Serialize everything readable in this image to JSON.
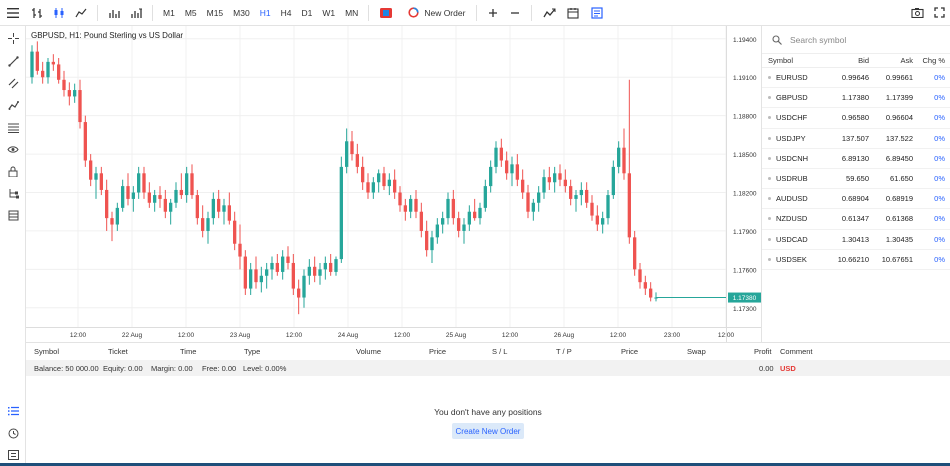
{
  "toolbar": {
    "timeframes": [
      "M1",
      "M5",
      "M15",
      "M30",
      "H1",
      "H4",
      "D1",
      "W1",
      "MN"
    ],
    "active_timeframe": "H1",
    "new_order_label": "New Order"
  },
  "chart": {
    "title": "GBPUSD, H1: Pound Sterling vs US Dollar",
    "current_price": "1.17380",
    "bull_color": "#26a69a",
    "bear_color": "#ef5350"
  },
  "chart_data": {
    "type": "candlestick",
    "title": "GBPUSD, H1: Pound Sterling vs US Dollar",
    "y_ticks": [
      "1.19400",
      "1.19100",
      "1.18800",
      "1.18500",
      "1.18200",
      "1.17900",
      "1.17600",
      "1.17300"
    ],
    "x_ticks": [
      "12:00",
      "22 Aug",
      "12:00",
      "23 Aug",
      "12:00",
      "24 Aug",
      "12:00",
      "25 Aug",
      "12:00",
      "26 Aug",
      "12:00",
      "23:00",
      "12:00"
    ],
    "ylim": [
      1.1715,
      1.195
    ],
    "last_price": 1.1738,
    "candles": [
      [
        1.191,
        1.1935,
        1.1905,
        1.193
      ],
      [
        1.193,
        1.1938,
        1.1912,
        1.1915
      ],
      [
        1.1915,
        1.1922,
        1.1905,
        1.191
      ],
      [
        1.191,
        1.1925,
        1.1905,
        1.1922
      ],
      [
        1.1922,
        1.1928,
        1.1915,
        1.192
      ],
      [
        1.192,
        1.1925,
        1.1905,
        1.1908
      ],
      [
        1.1908,
        1.1915,
        1.1895,
        1.19
      ],
      [
        1.19,
        1.1906,
        1.1888,
        1.1895
      ],
      [
        1.1895,
        1.1905,
        1.189,
        1.19
      ],
      [
        1.19,
        1.1908,
        1.187,
        1.1875
      ],
      [
        1.1875,
        1.188,
        1.184,
        1.1845
      ],
      [
        1.1845,
        1.185,
        1.1825,
        1.183
      ],
      [
        1.183,
        1.184,
        1.1815,
        1.1835
      ],
      [
        1.1835,
        1.184,
        1.1818,
        1.1822
      ],
      [
        1.1822,
        1.183,
        1.179,
        1.18
      ],
      [
        1.18,
        1.1805,
        1.1782,
        1.1795
      ],
      [
        1.1795,
        1.1812,
        1.179,
        1.1808
      ],
      [
        1.1808,
        1.183,
        1.1805,
        1.1825
      ],
      [
        1.1825,
        1.1835,
        1.181,
        1.1815
      ],
      [
        1.1815,
        1.1825,
        1.1805,
        1.182
      ],
      [
        1.182,
        1.184,
        1.1815,
        1.1835
      ],
      [
        1.1835,
        1.184,
        1.1815,
        1.182
      ],
      [
        1.182,
        1.1828,
        1.1808,
        1.1812
      ],
      [
        1.1812,
        1.1822,
        1.1805,
        1.1818
      ],
      [
        1.1818,
        1.1825,
        1.1808,
        1.1815
      ],
      [
        1.1815,
        1.1822,
        1.18,
        1.1805
      ],
      [
        1.1805,
        1.1815,
        1.1795,
        1.1812
      ],
      [
        1.1812,
        1.1828,
        1.1808,
        1.1822
      ],
      [
        1.1822,
        1.1835,
        1.1815,
        1.1818
      ],
      [
        1.1818,
        1.184,
        1.1812,
        1.1835
      ],
      [
        1.1835,
        1.1842,
        1.1815,
        1.1818
      ],
      [
        1.1818,
        1.1822,
        1.1795,
        1.18
      ],
      [
        1.18,
        1.181,
        1.1785,
        1.179
      ],
      [
        1.179,
        1.1805,
        1.178,
        1.18
      ],
      [
        1.18,
        1.182,
        1.1795,
        1.1815
      ],
      [
        1.1815,
        1.1822,
        1.18,
        1.1805
      ],
      [
        1.1805,
        1.1815,
        1.1795,
        1.181
      ],
      [
        1.181,
        1.182,
        1.1795,
        1.1798
      ],
      [
        1.1798,
        1.1805,
        1.1775,
        1.178
      ],
      [
        1.178,
        1.1795,
        1.176,
        1.177
      ],
      [
        1.177,
        1.1775,
        1.174,
        1.1745
      ],
      [
        1.1745,
        1.1765,
        1.174,
        1.176
      ],
      [
        1.176,
        1.177,
        1.1745,
        1.175
      ],
      [
        1.175,
        1.1762,
        1.1742,
        1.1755
      ],
      [
        1.1755,
        1.1765,
        1.1745,
        1.176
      ],
      [
        1.176,
        1.177,
        1.1752,
        1.1765
      ],
      [
        1.1765,
        1.1772,
        1.1755,
        1.1758
      ],
      [
        1.1758,
        1.1775,
        1.1752,
        1.177
      ],
      [
        1.177,
        1.1778,
        1.176,
        1.1765
      ],
      [
        1.1765,
        1.1772,
        1.174,
        1.1745
      ],
      [
        1.1745,
        1.1752,
        1.1725,
        1.1738
      ],
      [
        1.1738,
        1.176,
        1.173,
        1.1755
      ],
      [
        1.1755,
        1.1768,
        1.1748,
        1.1762
      ],
      [
        1.1762,
        1.177,
        1.175,
        1.1755
      ],
      [
        1.1755,
        1.1765,
        1.1748,
        1.176
      ],
      [
        1.176,
        1.177,
        1.1752,
        1.1765
      ],
      [
        1.1765,
        1.1772,
        1.1755,
        1.1758
      ],
      [
        1.1758,
        1.177,
        1.1755,
        1.1768
      ],
      [
        1.1768,
        1.1848,
        1.1765,
        1.184
      ],
      [
        1.184,
        1.187,
        1.1835,
        1.186
      ],
      [
        1.186,
        1.1868,
        1.1845,
        1.185
      ],
      [
        1.185,
        1.1858,
        1.1835,
        1.184
      ],
      [
        1.184,
        1.1848,
        1.1822,
        1.1828
      ],
      [
        1.1828,
        1.1835,
        1.1815,
        1.182
      ],
      [
        1.182,
        1.1832,
        1.1815,
        1.1828
      ],
      [
        1.1828,
        1.1838,
        1.182,
        1.1835
      ],
      [
        1.1835,
        1.184,
        1.1822,
        1.1825
      ],
      [
        1.1825,
        1.1835,
        1.1818,
        1.183
      ],
      [
        1.183,
        1.1838,
        1.1815,
        1.182
      ],
      [
        1.182,
        1.1825,
        1.1805,
        1.181
      ],
      [
        1.181,
        1.1815,
        1.1798,
        1.1805
      ],
      [
        1.1805,
        1.1818,
        1.18,
        1.1815
      ],
      [
        1.1815,
        1.1822,
        1.18,
        1.1805
      ],
      [
        1.1805,
        1.1812,
        1.1785,
        1.179
      ],
      [
        1.179,
        1.1798,
        1.177,
        1.1775
      ],
      [
        1.1775,
        1.179,
        1.1765,
        1.1785
      ],
      [
        1.1785,
        1.18,
        1.178,
        1.1795
      ],
      [
        1.1795,
        1.1805,
        1.1788,
        1.18
      ],
      [
        1.18,
        1.182,
        1.1795,
        1.1815
      ],
      [
        1.1815,
        1.1822,
        1.1795,
        1.18
      ],
      [
        1.18,
        1.1805,
        1.1785,
        1.179
      ],
      [
        1.179,
        1.18,
        1.178,
        1.1795
      ],
      [
        1.1795,
        1.181,
        1.179,
        1.1805
      ],
      [
        1.1805,
        1.1815,
        1.1798,
        1.18
      ],
      [
        1.18,
        1.1812,
        1.1795,
        1.1808
      ],
      [
        1.1808,
        1.183,
        1.1805,
        1.1825
      ],
      [
        1.1825,
        1.1845,
        1.182,
        1.184
      ],
      [
        1.184,
        1.186,
        1.1835,
        1.1855
      ],
      [
        1.1855,
        1.1862,
        1.184,
        1.1845
      ],
      [
        1.1845,
        1.1852,
        1.183,
        1.1835
      ],
      [
        1.1835,
        1.1848,
        1.1825,
        1.1842
      ],
      [
        1.1842,
        1.185,
        1.1825,
        1.183
      ],
      [
        1.183,
        1.1838,
        1.1815,
        1.182
      ],
      [
        1.182,
        1.1826,
        1.18,
        1.1805
      ],
      [
        1.1805,
        1.1815,
        1.1798,
        1.1812
      ],
      [
        1.1812,
        1.1825,
        1.1805,
        1.182
      ],
      [
        1.182,
        1.1838,
        1.1815,
        1.1832
      ],
      [
        1.1832,
        1.184,
        1.1822,
        1.1828
      ],
      [
        1.1828,
        1.184,
        1.182,
        1.1835
      ],
      [
        1.1835,
        1.1842,
        1.1825,
        1.183
      ],
      [
        1.183,
        1.1838,
        1.182,
        1.1825
      ],
      [
        1.1825,
        1.183,
        1.181,
        1.1815
      ],
      [
        1.1815,
        1.1822,
        1.1805,
        1.1818
      ],
      [
        1.1818,
        1.1828,
        1.181,
        1.1822
      ],
      [
        1.1822,
        1.1828,
        1.1808,
        1.1812
      ],
      [
        1.1812,
        1.1818,
        1.1798,
        1.1802
      ],
      [
        1.1802,
        1.181,
        1.179,
        1.1795
      ],
      [
        1.1795,
        1.1805,
        1.1788,
        1.18
      ],
      [
        1.18,
        1.1822,
        1.1795,
        1.1818
      ],
      [
        1.1818,
        1.1845,
        1.1815,
        1.184
      ],
      [
        1.184,
        1.186,
        1.1835,
        1.1855
      ],
      [
        1.1855,
        1.187,
        1.183,
        1.1835
      ],
      [
        1.1835,
        1.1908,
        1.178,
        1.1785
      ],
      [
        1.1785,
        1.179,
        1.1755,
        1.176
      ],
      [
        1.176,
        1.1765,
        1.1745,
        1.175
      ],
      [
        1.175,
        1.1755,
        1.174,
        1.1745
      ],
      [
        1.1745,
        1.175,
        1.1735,
        1.1738
      ],
      [
        1.1738,
        1.1742,
        1.1735,
        1.1738
      ]
    ]
  },
  "watchlist": {
    "search_placeholder": "Search symbol",
    "headers": {
      "symbol": "Symbol",
      "bid": "Bid",
      "ask": "Ask",
      "chg": "Chg %"
    },
    "rows": [
      {
        "symbol": "EURUSD",
        "bid": "0.99646",
        "ask": "0.99661",
        "chg": "0%"
      },
      {
        "symbol": "GBPUSD",
        "bid": "1.17380",
        "ask": "1.17399",
        "chg": "0%"
      },
      {
        "symbol": "USDCHF",
        "bid": "0.96580",
        "ask": "0.96604",
        "chg": "0%"
      },
      {
        "symbol": "USDJPY",
        "bid": "137.507",
        "ask": "137.522",
        "chg": "0%"
      },
      {
        "symbol": "USDCNH",
        "bid": "6.89130",
        "ask": "6.89450",
        "chg": "0%"
      },
      {
        "symbol": "USDRUB",
        "bid": "59.650",
        "ask": "61.650",
        "chg": "0%"
      },
      {
        "symbol": "AUDUSD",
        "bid": "0.68904",
        "ask": "0.68919",
        "chg": "0%"
      },
      {
        "symbol": "NZDUSD",
        "bid": "0.61347",
        "ask": "0.61368",
        "chg": "0%"
      },
      {
        "symbol": "USDCAD",
        "bid": "1.30413",
        "ask": "1.30435",
        "chg": "0%"
      },
      {
        "symbol": "USDSEK",
        "bid": "10.66210",
        "ask": "10.67651",
        "chg": "0%"
      }
    ]
  },
  "positions": {
    "headers": {
      "symbol": "Symbol",
      "ticket": "Ticket",
      "time": "Time",
      "type": "Type",
      "volume": "Volume",
      "price": "Price",
      "sl": "S / L",
      "tp": "T / P",
      "price2": "Price",
      "swap": "Swap",
      "profit": "Profit",
      "comment": "Comment"
    },
    "balance": "Balance: 50 000.00",
    "equity": "Equity: 0.00",
    "margin": "Margin: 0.00",
    "free": "Free: 0.00",
    "level": "Level: 0.00%",
    "profit_total": "0.00",
    "currency": "USD",
    "empty_message": "You don't have any positions",
    "create_label": "Create New Order"
  }
}
